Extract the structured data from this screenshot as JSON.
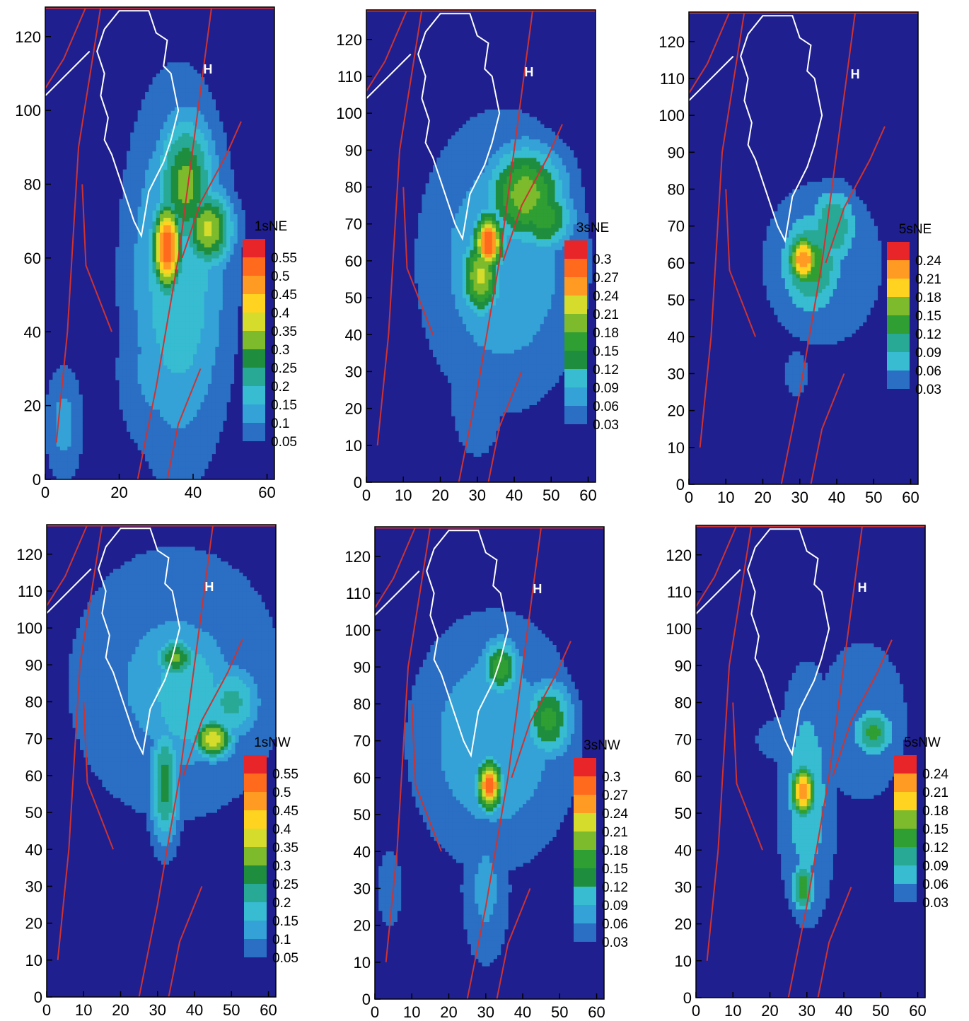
{
  "chart_data": [
    {
      "type": "heatmap",
      "title": "",
      "xlabel": "",
      "ylabel": "",
      "xlim": [
        0,
        62
      ],
      "ylim": [
        0,
        128
      ],
      "xticks": [
        0,
        20,
        40,
        60
      ],
      "yticks": [
        0,
        20,
        40,
        60,
        80,
        100,
        120
      ],
      "legend_title": "1sNE",
      "levels": [
        0.55,
        0.5,
        0.45,
        0.4,
        0.35,
        0.3,
        0.25,
        0.2,
        0.15,
        0.1,
        0.05
      ],
      "label_marker": "H",
      "label_marker_pos": [
        44,
        110
      ],
      "hotspots": [
        {
          "x": 33,
          "y": 63,
          "sx": 3,
          "sy": 9,
          "peak": 0.55
        },
        {
          "x": 38,
          "y": 80,
          "sx": 6,
          "sy": 14,
          "peak": 0.32
        },
        {
          "x": 44,
          "y": 68,
          "sx": 5,
          "sy": 8,
          "peak": 0.36
        },
        {
          "x": 36,
          "y": 55,
          "sx": 10,
          "sy": 35,
          "peak": 0.2
        },
        {
          "x": 30,
          "y": 30,
          "sx": 8,
          "sy": 18,
          "peak": 0.12
        },
        {
          "x": 5,
          "y": 15,
          "sx": 4,
          "sy": 12,
          "peak": 0.12
        }
      ]
    },
    {
      "type": "heatmap",
      "title": "",
      "xlabel": "",
      "ylabel": "",
      "xlim": [
        0,
        62
      ],
      "ylim": [
        0,
        128
      ],
      "xticks": [
        0,
        10,
        20,
        30,
        40,
        50,
        60
      ],
      "yticks": [
        0,
        10,
        20,
        30,
        40,
        50,
        60,
        70,
        80,
        90,
        100,
        110,
        120
      ],
      "legend_title": "3sNE",
      "levels": [
        0.3,
        0.27,
        0.24,
        0.21,
        0.18,
        0.15,
        0.12,
        0.09,
        0.06,
        0.03
      ],
      "label_marker": "H",
      "label_marker_pos": [
        44,
        110
      ],
      "hotspots": [
        {
          "x": 33,
          "y": 65,
          "sx": 3,
          "sy": 6,
          "peak": 0.3
        },
        {
          "x": 31,
          "y": 56,
          "sx": 4,
          "sy": 8,
          "peak": 0.22
        },
        {
          "x": 43,
          "y": 78,
          "sx": 8,
          "sy": 10,
          "peak": 0.2
        },
        {
          "x": 48,
          "y": 72,
          "sx": 6,
          "sy": 7,
          "peak": 0.17
        },
        {
          "x": 37,
          "y": 60,
          "sx": 16,
          "sy": 28,
          "peak": 0.09
        },
        {
          "x": 30,
          "y": 25,
          "sx": 6,
          "sy": 15,
          "peak": 0.06
        }
      ]
    },
    {
      "type": "heatmap",
      "title": "",
      "xlabel": "",
      "ylabel": "",
      "xlim": [
        0,
        62
      ],
      "ylim": [
        0,
        128
      ],
      "xticks": [
        0,
        10,
        20,
        30,
        40,
        50,
        60
      ],
      "yticks": [
        0,
        10,
        20,
        30,
        40,
        50,
        60,
        70,
        80,
        90,
        100,
        110,
        120
      ],
      "legend_title": "5sNE",
      "levels": [
        0.24,
        0.21,
        0.18,
        0.15,
        0.12,
        0.09,
        0.06,
        0.03
      ],
      "label_marker": "H",
      "label_marker_pos": [
        45,
        110
      ],
      "hotspots": [
        {
          "x": 31,
          "y": 61,
          "sx": 3,
          "sy": 5,
          "peak": 0.24
        },
        {
          "x": 33,
          "y": 60,
          "sx": 6,
          "sy": 10,
          "peak": 0.14
        },
        {
          "x": 39,
          "y": 70,
          "sx": 5,
          "sy": 8,
          "peak": 0.12
        },
        {
          "x": 36,
          "y": 60,
          "sx": 16,
          "sy": 22,
          "peak": 0.05
        },
        {
          "x": 29,
          "y": 30,
          "sx": 3,
          "sy": 6,
          "peak": 0.05
        }
      ]
    },
    {
      "type": "heatmap",
      "title": "",
      "xlabel": "",
      "ylabel": "",
      "xlim": [
        0,
        62
      ],
      "ylim": [
        0,
        128
      ],
      "xticks": [
        0,
        10,
        20,
        30,
        40,
        50,
        60
      ],
      "yticks": [
        0,
        10,
        20,
        30,
        40,
        50,
        60,
        70,
        80,
        90,
        100,
        110,
        120
      ],
      "legend_title": "1sNW",
      "levels": [
        0.55,
        0.5,
        0.45,
        0.4,
        0.35,
        0.3,
        0.25,
        0.2,
        0.15,
        0.1,
        0.05
      ],
      "label_marker": "H",
      "label_marker_pos": [
        44,
        110
      ],
      "hotspots": [
        {
          "x": 35,
          "y": 92,
          "sx": 4,
          "sy": 4,
          "peak": 0.32
        },
        {
          "x": 45,
          "y": 70,
          "sx": 4,
          "sy": 4,
          "peak": 0.4
        },
        {
          "x": 32,
          "y": 58,
          "sx": 3,
          "sy": 12,
          "peak": 0.28
        },
        {
          "x": 38,
          "y": 82,
          "sx": 10,
          "sy": 16,
          "peak": 0.2
        },
        {
          "x": 50,
          "y": 80,
          "sx": 6,
          "sy": 8,
          "peak": 0.22
        },
        {
          "x": 35,
          "y": 85,
          "sx": 22,
          "sy": 28,
          "peak": 0.12
        }
      ]
    },
    {
      "type": "heatmap",
      "title": "",
      "xlabel": "",
      "ylabel": "",
      "xlim": [
        0,
        62
      ],
      "ylim": [
        0,
        128
      ],
      "xticks": [
        0,
        10,
        20,
        30,
        40,
        50,
        60
      ],
      "yticks": [
        0,
        10,
        20,
        30,
        40,
        50,
        60,
        70,
        80,
        90,
        100,
        110,
        120
      ],
      "legend_title": "3sNW",
      "levels": [
        0.3,
        0.27,
        0.24,
        0.21,
        0.18,
        0.15,
        0.12,
        0.09,
        0.06,
        0.03
      ],
      "label_marker": "H",
      "label_marker_pos": [
        44,
        110
      ],
      "hotspots": [
        {
          "x": 31,
          "y": 58,
          "sx": 2.5,
          "sy": 5,
          "peak": 0.3
        },
        {
          "x": 34,
          "y": 90,
          "sx": 4,
          "sy": 6,
          "peak": 0.17
        },
        {
          "x": 47,
          "y": 76,
          "sx": 5,
          "sy": 8,
          "peak": 0.16
        },
        {
          "x": 32,
          "y": 70,
          "sx": 16,
          "sy": 24,
          "peak": 0.09
        },
        {
          "x": 30,
          "y": 30,
          "sx": 5,
          "sy": 16,
          "peak": 0.07
        },
        {
          "x": 4,
          "y": 30,
          "sx": 3,
          "sy": 10,
          "peak": 0.05
        }
      ]
    },
    {
      "type": "heatmap",
      "title": "",
      "xlabel": "",
      "ylabel": "",
      "xlim": [
        0,
        62
      ],
      "ylim": [
        0,
        128
      ],
      "xticks": [
        0,
        10,
        20,
        30,
        40,
        50,
        60
      ],
      "yticks": [
        0,
        10,
        20,
        30,
        40,
        50,
        60,
        70,
        80,
        90,
        100,
        110,
        120
      ],
      "legend_title": "5sNW",
      "levels": [
        0.24,
        0.21,
        0.18,
        0.15,
        0.12,
        0.09,
        0.06,
        0.03
      ],
      "label_marker": "H",
      "label_marker_pos": [
        45,
        110
      ],
      "hotspots": [
        {
          "x": 29,
          "y": 56,
          "sx": 2.5,
          "sy": 5,
          "peak": 0.24
        },
        {
          "x": 48,
          "y": 72,
          "sx": 4,
          "sy": 5,
          "peak": 0.13
        },
        {
          "x": 29,
          "y": 30,
          "sx": 2.5,
          "sy": 5,
          "peak": 0.14
        },
        {
          "x": 30,
          "y": 55,
          "sx": 6,
          "sy": 26,
          "peak": 0.08
        },
        {
          "x": 45,
          "y": 75,
          "sx": 10,
          "sy": 18,
          "peak": 0.06
        },
        {
          "x": 30,
          "y": 70,
          "sx": 18,
          "sy": 10,
          "peak": 0.04
        }
      ]
    }
  ],
  "colors": {
    "background": "#1f1f8f",
    "fault": "#cc3333",
    "coast": "#ffffff",
    "scale": [
      "#2a6fc4",
      "#34a2d6",
      "#37bcd1",
      "#28a996",
      "#1e8e3e",
      "#2f9e33",
      "#7dbb2c",
      "#d6dc2b",
      "#ffd320",
      "#ff9b22",
      "#ff6a1d",
      "#e8262a"
    ]
  }
}
